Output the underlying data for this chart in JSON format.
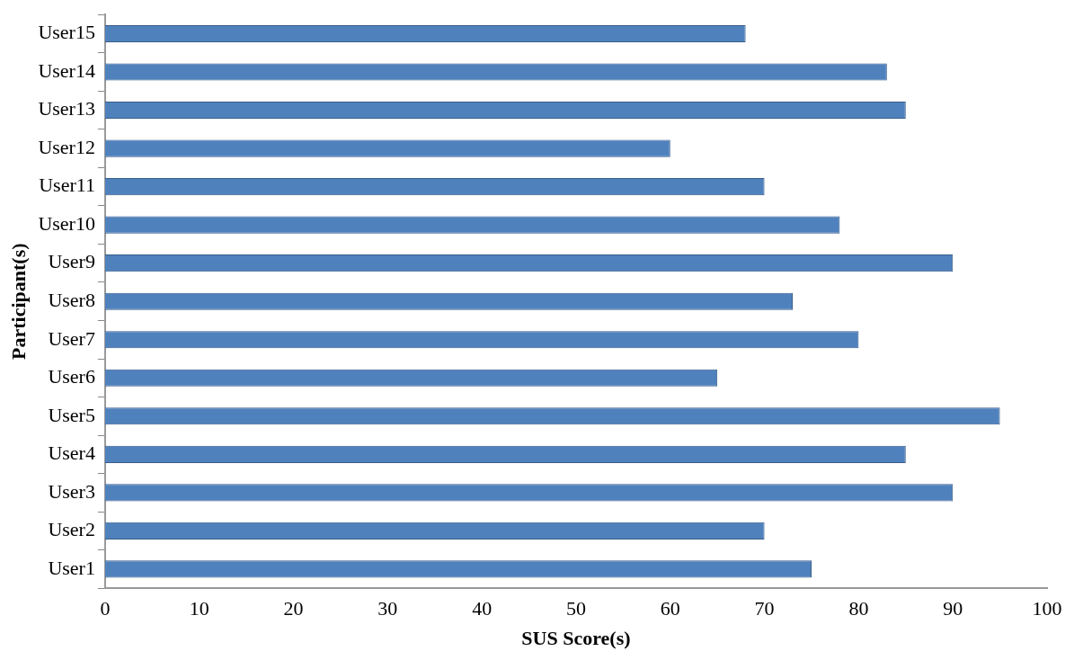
{
  "chart_data": {
    "type": "bar",
    "orientation": "horizontal",
    "xlabel": "SUS Score(s)",
    "ylabel": "Participant(s)",
    "categories": [
      "User15",
      "User14",
      "User13",
      "User12",
      "User11",
      "User10",
      "User9",
      "User8",
      "User7",
      "User6",
      "User5",
      "User4",
      "User3",
      "User2",
      "User1"
    ],
    "values": [
      68,
      83,
      85,
      60,
      70,
      78,
      90,
      73,
      80,
      65,
      95,
      85,
      90,
      70,
      75
    ],
    "color": "#4f81bd",
    "xlim": [
      0,
      100
    ],
    "xticks": [
      0,
      10,
      20,
      30,
      40,
      50,
      60,
      70,
      80,
      90,
      100
    ],
    "grid": false,
    "legend": false
  }
}
